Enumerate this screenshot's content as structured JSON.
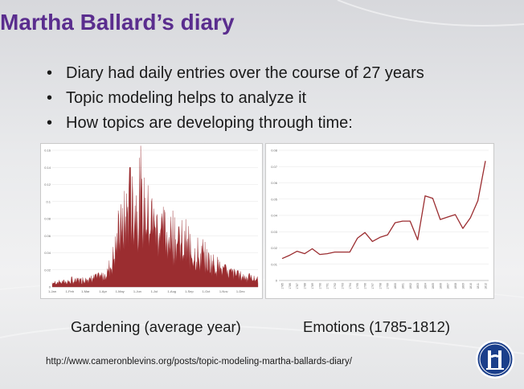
{
  "slide": {
    "title": "Martha Ballard’s diary",
    "bullets": [
      "Diary had daily entries over the course of 27 years",
      "Topic modeling helps to analyze it",
      "How topics are developing through time:"
    ],
    "captions": {
      "left": "Gardening (average year)",
      "right": "Emotions (1785-1812)"
    },
    "source_url": "http://www.cameronblevins.org/posts/topic-modeling-martha-ballards-diary/",
    "logo_icon": "hse-university-logo-icon"
  },
  "chart_data": [
    {
      "type": "area",
      "name": "gardening",
      "color": "#9b2d30",
      "ylim": [
        0,
        0.16
      ],
      "y_ticks": [
        "0",
        "0.02",
        "0.04",
        "0.06",
        "0.08",
        "0.1",
        "0.12",
        "0.14",
        "0.16"
      ],
      "x_tick_labels": [
        "1-Jan",
        "1-Feb",
        "1-Mar",
        "1-Apr",
        "1-May",
        "1-Jun",
        "1-Jul",
        "1-Aug",
        "1-Sep",
        "1-Oct",
        "1-Nov",
        "1-Dec"
      ],
      "profile": {
        "x_day": [
          0,
          31,
          59,
          90,
          105,
          115,
          125,
          135,
          140,
          150,
          165,
          180,
          195,
          210,
          225,
          240,
          260,
          275,
          290,
          305,
          320,
          335,
          350,
          365
        ],
        "y": [
          0.005,
          0.006,
          0.008,
          0.012,
          0.025,
          0.05,
          0.07,
          0.085,
          0.1,
          0.09,
          0.085,
          0.07,
          0.065,
          0.055,
          0.05,
          0.042,
          0.035,
          0.03,
          0.025,
          0.018,
          0.015,
          0.012,
          0.01,
          0.008
        ]
      },
      "peak": {
        "x_day": 138,
        "y": 0.14
      },
      "grid": true,
      "legend": "none"
    },
    {
      "type": "line",
      "name": "emotions",
      "color": "#9b2d30",
      "ylim": [
        0,
        0.08
      ],
      "y_ticks": [
        "0",
        "0.01",
        "0.02",
        "0.03",
        "0.04",
        "0.05",
        "0.06",
        "0.07",
        "0.08"
      ],
      "x": [
        1785,
        1786,
        1787,
        1788,
        1789,
        1790,
        1791,
        1792,
        1793,
        1794,
        1795,
        1796,
        1797,
        1798,
        1799,
        1800,
        1801,
        1802,
        1803,
        1804,
        1805,
        1806,
        1807,
        1808,
        1809,
        1810,
        1811,
        1812
      ],
      "values": [
        0.0135,
        0.0155,
        0.018,
        0.0165,
        0.0195,
        0.016,
        0.0165,
        0.0175,
        0.0175,
        0.0175,
        0.026,
        0.0295,
        0.024,
        0.0265,
        0.028,
        0.0355,
        0.0365,
        0.0365,
        0.025,
        0.052,
        0.0505,
        0.0375,
        0.039,
        0.0405,
        0.032,
        0.0385,
        0.049,
        0.0735
      ],
      "grid": true,
      "legend": "none"
    }
  ]
}
